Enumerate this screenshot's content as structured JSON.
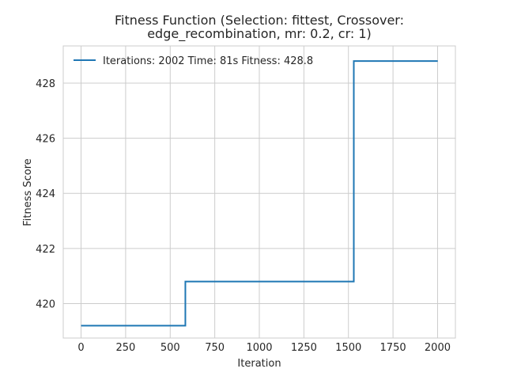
{
  "chart_data": {
    "type": "line",
    "title_lines": [
      "Fitness Function (Selection: fittest, Crossover:",
      "edge_recombination, mr: 0.2, cr: 1)"
    ],
    "xlabel": "Iteration",
    "ylabel": "Fitness Score",
    "xlim": [
      -100,
      2100
    ],
    "ylim": [
      418.75,
      429.35
    ],
    "xticks": [
      0,
      250,
      500,
      750,
      1000,
      1250,
      1500,
      1750,
      2000
    ],
    "yticks": [
      420,
      422,
      424,
      426,
      428
    ],
    "grid": true,
    "legend_position": "top-left",
    "series": [
      {
        "name": "Iterations: 2002 Time: 81s Fitness: 428.8",
        "color": "#1f77b4",
        "step": true,
        "x": [
          0,
          585,
          585,
          1530,
          1530,
          2001
        ],
        "y": [
          419.2,
          419.2,
          420.8,
          420.8,
          428.8,
          428.8
        ]
      }
    ]
  }
}
